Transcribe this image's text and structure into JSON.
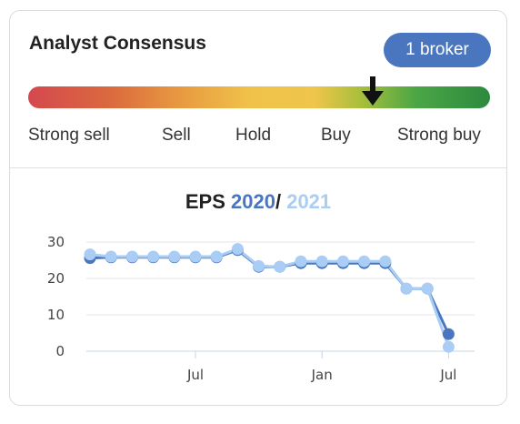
{
  "header": {
    "title": "Analyst Consensus",
    "broker_badge": "1 broker"
  },
  "consensus_scale": {
    "labels": [
      "Strong sell",
      "Sell",
      "Hold",
      "Buy",
      "Strong buy"
    ],
    "position": 0.74
  },
  "eps": {
    "title_prefix": "EPS",
    "year_a": "2020",
    "separator": "/",
    "year_b": "2021"
  },
  "colors": {
    "series_2020": "#4a76bf",
    "series_2021": "#a9cdf5",
    "badge": "#4a76bf"
  },
  "chart_data": {
    "type": "line",
    "ylim": [
      0,
      30
    ],
    "yticks": [
      0,
      10,
      20,
      30
    ],
    "x_tick_labels": [
      {
        "label": "Jul",
        "index": 5
      },
      {
        "label": "Jan",
        "index": 11
      },
      {
        "label": "Jul",
        "index": 17
      }
    ],
    "series": [
      {
        "name": "2020",
        "values": [
          25.6,
          25.8,
          25.8,
          25.8,
          25.8,
          25.8,
          25.8,
          27.8,
          23.2,
          23.2,
          24.2,
          24.2,
          24.2,
          24.2,
          24.2,
          17.2,
          17.2,
          4.7
        ]
      },
      {
        "name": "2021",
        "values": [
          26.6,
          26.0,
          26.0,
          26.0,
          26.0,
          26.0,
          26.0,
          28.1,
          23.4,
          23.2,
          24.7,
          24.7,
          24.7,
          24.7,
          24.7,
          17.2,
          17.2,
          1.2
        ]
      }
    ]
  }
}
